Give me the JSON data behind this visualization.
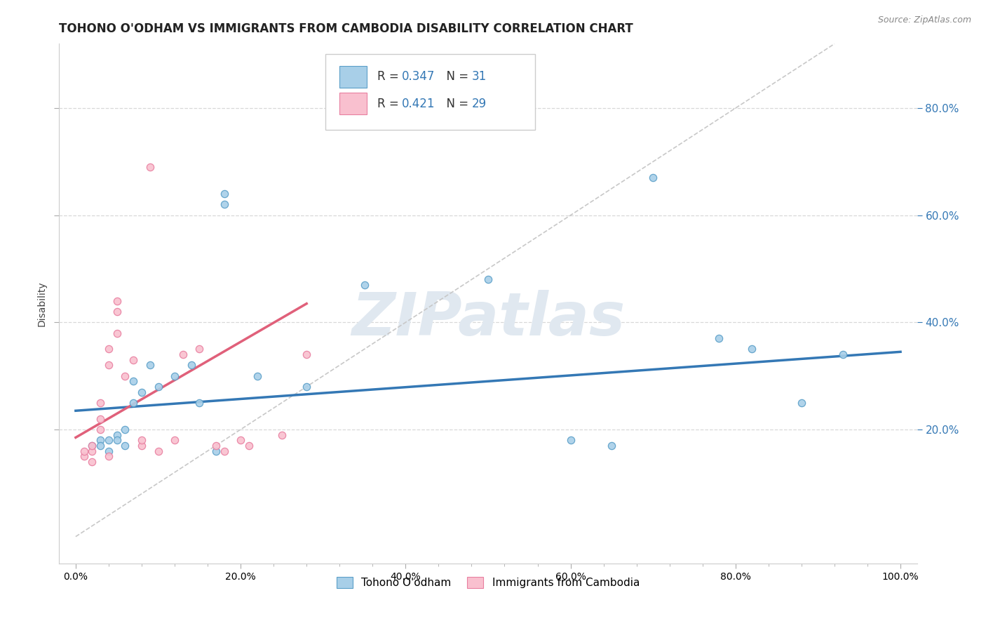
{
  "title": "TOHONO O'ODHAM VS IMMIGRANTS FROM CAMBODIA DISABILITY CORRELATION CHART",
  "source": "Source: ZipAtlas.com",
  "ylabel": "Disability",
  "xlim": [
    -0.02,
    1.02
  ],
  "ylim": [
    -0.05,
    0.92
  ],
  "xtick_labels": [
    "0.0%",
    "",
    "",
    "",
    "",
    "",
    "",
    "",
    "",
    "",
    "20.0%",
    "",
    "",
    "",
    "",
    "",
    "",
    "",
    "",
    "",
    "40.0%",
    "",
    "",
    "",
    "",
    "",
    "",
    "",
    "",
    "",
    "60.0%",
    "",
    "",
    "",
    "",
    "",
    "",
    "",
    "",
    "",
    "80.0%",
    "",
    "",
    "",
    "",
    "",
    "",
    "",
    "",
    "",
    "100.0%"
  ],
  "xtick_vals": [
    0.0,
    0.02,
    0.04,
    0.06,
    0.08,
    0.1,
    0.12,
    0.14,
    0.16,
    0.18,
    0.2,
    0.22,
    0.24,
    0.26,
    0.28,
    0.3,
    0.32,
    0.34,
    0.36,
    0.38,
    0.4,
    0.42,
    0.44,
    0.46,
    0.48,
    0.5,
    0.52,
    0.54,
    0.56,
    0.58,
    0.6,
    0.62,
    0.64,
    0.66,
    0.68,
    0.7,
    0.72,
    0.74,
    0.76,
    0.78,
    0.8,
    0.82,
    0.84,
    0.86,
    0.88,
    0.9,
    0.92,
    0.94,
    0.96,
    0.98,
    1.0
  ],
  "major_xtick_vals": [
    0.0,
    0.2,
    0.4,
    0.6,
    0.8,
    1.0
  ],
  "major_xtick_labels": [
    "0.0%",
    "20.0%",
    "40.0%",
    "60.0%",
    "80.0%",
    "100.0%"
  ],
  "ytick_vals": [
    0.2,
    0.4,
    0.6,
    0.8
  ],
  "ytick_labels": [
    "20.0%",
    "40.0%",
    "60.0%",
    "80.0%"
  ],
  "blue_scatter": [
    [
      0.02,
      0.17
    ],
    [
      0.03,
      0.18
    ],
    [
      0.03,
      0.17
    ],
    [
      0.04,
      0.18
    ],
    [
      0.04,
      0.16
    ],
    [
      0.05,
      0.19
    ],
    [
      0.05,
      0.18
    ],
    [
      0.06,
      0.17
    ],
    [
      0.06,
      0.2
    ],
    [
      0.07,
      0.25
    ],
    [
      0.07,
      0.29
    ],
    [
      0.08,
      0.27
    ],
    [
      0.09,
      0.32
    ],
    [
      0.1,
      0.28
    ],
    [
      0.12,
      0.3
    ],
    [
      0.14,
      0.32
    ],
    [
      0.15,
      0.25
    ],
    [
      0.17,
      0.16
    ],
    [
      0.18,
      0.62
    ],
    [
      0.18,
      0.64
    ],
    [
      0.22,
      0.3
    ],
    [
      0.28,
      0.28
    ],
    [
      0.35,
      0.47
    ],
    [
      0.5,
      0.48
    ],
    [
      0.6,
      0.18
    ],
    [
      0.65,
      0.17
    ],
    [
      0.7,
      0.67
    ],
    [
      0.78,
      0.37
    ],
    [
      0.82,
      0.35
    ],
    [
      0.88,
      0.25
    ],
    [
      0.93,
      0.34
    ]
  ],
  "pink_scatter": [
    [
      0.01,
      0.15
    ],
    [
      0.01,
      0.16
    ],
    [
      0.02,
      0.14
    ],
    [
      0.02,
      0.16
    ],
    [
      0.02,
      0.17
    ],
    [
      0.03,
      0.2
    ],
    [
      0.03,
      0.22
    ],
    [
      0.03,
      0.25
    ],
    [
      0.04,
      0.15
    ],
    [
      0.04,
      0.32
    ],
    [
      0.04,
      0.35
    ],
    [
      0.05,
      0.38
    ],
    [
      0.05,
      0.42
    ],
    [
      0.05,
      0.44
    ],
    [
      0.06,
      0.3
    ],
    [
      0.07,
      0.33
    ],
    [
      0.08,
      0.17
    ],
    [
      0.08,
      0.18
    ],
    [
      0.09,
      0.69
    ],
    [
      0.1,
      0.16
    ],
    [
      0.12,
      0.18
    ],
    [
      0.13,
      0.34
    ],
    [
      0.15,
      0.35
    ],
    [
      0.17,
      0.17
    ],
    [
      0.18,
      0.16
    ],
    [
      0.2,
      0.18
    ],
    [
      0.21,
      0.17
    ],
    [
      0.25,
      0.19
    ],
    [
      0.28,
      0.34
    ]
  ],
  "blue_line_x": [
    0.0,
    1.0
  ],
  "blue_line_y": [
    0.235,
    0.345
  ],
  "pink_line_x": [
    0.0,
    0.28
  ],
  "pink_line_y": [
    0.185,
    0.435
  ],
  "diag_line_x": [
    0.0,
    0.92
  ],
  "diag_line_y": [
    0.0,
    0.92
  ],
  "blue_color": "#a8cfe8",
  "pink_color": "#f9c0cf",
  "blue_edge_color": "#5b9fc8",
  "pink_edge_color": "#e87fa0",
  "blue_line_color": "#3478b5",
  "pink_line_color": "#e0607a",
  "diag_color": "#c8c8c8",
  "legend_blue_R": "0.347",
  "legend_blue_N": "31",
  "legend_pink_R": "0.421",
  "legend_pink_N": "29",
  "title_fontsize": 12,
  "axis_label_fontsize": 10,
  "tick_fontsize": 10,
  "scatter_size": 55,
  "background_color": "#ffffff",
  "grid_color": "#d8d8d8",
  "watermark_color": "#e0e8f0"
}
